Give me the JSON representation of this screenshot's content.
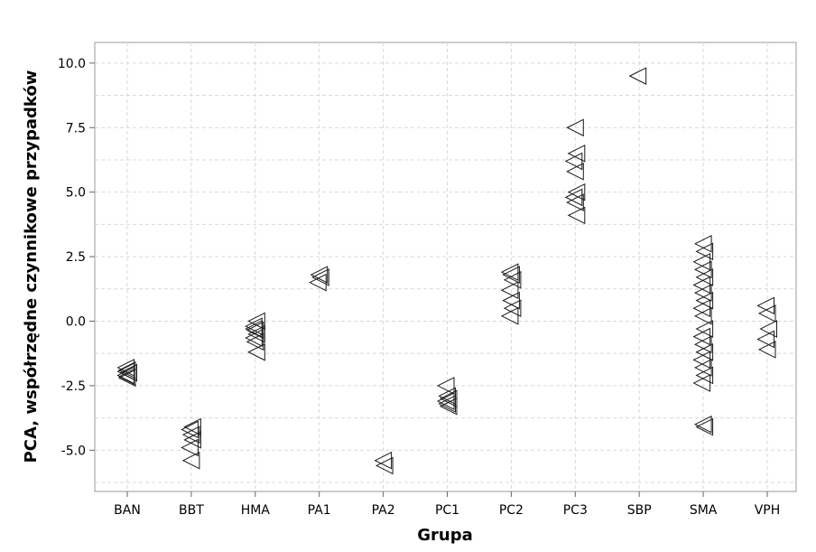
{
  "chart_data": {
    "type": "scatter",
    "title": "",
    "xlabel": "Grupa",
    "ylabel": "PCA, współrzędne czynnikowe przypadków",
    "ylim": [
      -6.6,
      10.8
    ],
    "yticks": [
      -5.0,
      -2.5,
      0.0,
      2.5,
      5.0,
      7.5,
      10.0
    ],
    "ytick_labels": [
      "-5.0",
      "-2.5",
      "0.0",
      "2.5",
      "5.0",
      "7.5",
      "10.0"
    ],
    "grid": true,
    "marker": "left-pointing triangle",
    "categories": [
      "BAN",
      "BBT",
      "HMA",
      "PA1",
      "PA2",
      "PC1",
      "PC2",
      "PC3",
      "SBP",
      "SMA",
      "VPH"
    ],
    "series": [
      {
        "points": [
          {
            "x": "BAN",
            "y": -1.8
          },
          {
            "x": "BAN",
            "y": -1.9
          },
          {
            "x": "BAN",
            "y": -2.0
          },
          {
            "x": "BAN",
            "y": -2.1
          },
          {
            "x": "BAN",
            "y": -2.2
          },
          {
            "x": "BAN",
            "y": -2.0
          },
          {
            "x": "BAN",
            "y": -1.95
          },
          {
            "x": "BAN",
            "y": -2.15
          },
          {
            "x": "BBT",
            "y": -4.1
          },
          {
            "x": "BBT",
            "y": -4.2
          },
          {
            "x": "BBT",
            "y": -4.4
          },
          {
            "x": "BBT",
            "y": -4.6
          },
          {
            "x": "BBT",
            "y": -4.9
          },
          {
            "x": "BBT",
            "y": -5.4
          },
          {
            "x": "HMA",
            "y": 0.0
          },
          {
            "x": "HMA",
            "y": -0.2
          },
          {
            "x": "HMA",
            "y": -0.35
          },
          {
            "x": "HMA",
            "y": -0.5
          },
          {
            "x": "HMA",
            "y": -0.65
          },
          {
            "x": "HMA",
            "y": -0.8
          },
          {
            "x": "HMA",
            "y": -1.2
          },
          {
            "x": "HMA",
            "y": -0.3
          },
          {
            "x": "PA1",
            "y": 1.8
          },
          {
            "x": "PA1",
            "y": 1.7
          },
          {
            "x": "PA1",
            "y": 1.5
          },
          {
            "x": "PA2",
            "y": -5.4
          },
          {
            "x": "PA2",
            "y": -5.6
          },
          {
            "x": "PC1",
            "y": -2.5
          },
          {
            "x": "PC1",
            "y": -2.9
          },
          {
            "x": "PC1",
            "y": -3.0
          },
          {
            "x": "PC1",
            "y": -3.1
          },
          {
            "x": "PC1",
            "y": -3.2
          },
          {
            "x": "PC1",
            "y": -3.3
          },
          {
            "x": "PC2",
            "y": 1.9
          },
          {
            "x": "PC2",
            "y": 1.8
          },
          {
            "x": "PC2",
            "y": 1.6
          },
          {
            "x": "PC2",
            "y": 1.2
          },
          {
            "x": "PC2",
            "y": 0.8
          },
          {
            "x": "PC2",
            "y": 0.5
          },
          {
            "x": "PC2",
            "y": 0.2
          },
          {
            "x": "PC3",
            "y": 7.5
          },
          {
            "x": "PC3",
            "y": 6.5
          },
          {
            "x": "PC3",
            "y": 6.2
          },
          {
            "x": "PC3",
            "y": 5.8
          },
          {
            "x": "PC3",
            "y": 5.0
          },
          {
            "x": "PC3",
            "y": 4.8
          },
          {
            "x": "PC3",
            "y": 4.6
          },
          {
            "x": "PC3",
            "y": 4.1
          },
          {
            "x": "SBP",
            "y": 9.5
          },
          {
            "x": "SMA",
            "y": 3.0
          },
          {
            "x": "SMA",
            "y": 2.7
          },
          {
            "x": "SMA",
            "y": 2.3
          },
          {
            "x": "SMA",
            "y": 2.0
          },
          {
            "x": "SMA",
            "y": 1.7
          },
          {
            "x": "SMA",
            "y": 1.4
          },
          {
            "x": "SMA",
            "y": 1.1
          },
          {
            "x": "SMA",
            "y": 0.8
          },
          {
            "x": "SMA",
            "y": 0.5
          },
          {
            "x": "SMA",
            "y": 0.2
          },
          {
            "x": "SMA",
            "y": -0.3
          },
          {
            "x": "SMA",
            "y": -0.6
          },
          {
            "x": "SMA",
            "y": -0.9
          },
          {
            "x": "SMA",
            "y": -1.2
          },
          {
            "x": "SMA",
            "y": -1.5
          },
          {
            "x": "SMA",
            "y": -1.8
          },
          {
            "x": "SMA",
            "y": -2.1
          },
          {
            "x": "SMA",
            "y": -2.4
          },
          {
            "x": "SMA",
            "y": -4.0
          },
          {
            "x": "SMA",
            "y": -4.1
          },
          {
            "x": "VPH",
            "y": 0.6
          },
          {
            "x": "VPH",
            "y": 0.3
          },
          {
            "x": "VPH",
            "y": -0.3
          },
          {
            "x": "VPH",
            "y": -0.7
          },
          {
            "x": "VPH",
            "y": -1.1
          }
        ]
      }
    ]
  }
}
